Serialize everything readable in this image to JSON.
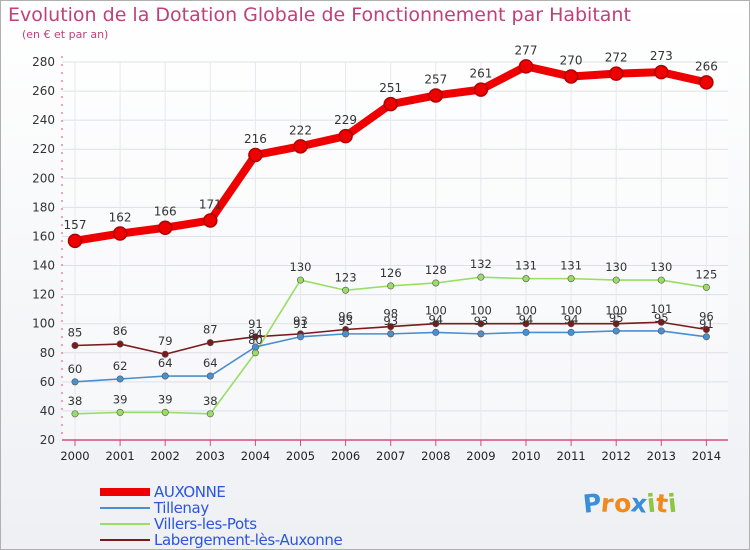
{
  "chart_data": {
    "type": "line",
    "title": "Evolution de la Dotation Globale de Fonctionnement par Habitant",
    "subtitle": "(en € et par an)",
    "xlabel": "",
    "ylabel": "",
    "categories": [
      "2000",
      "2001",
      "2002",
      "2003",
      "2004",
      "2005",
      "2006",
      "2007",
      "2008",
      "2009",
      "2010",
      "2011",
      "2012",
      "2013",
      "2014"
    ],
    "ylim": [
      20,
      280
    ],
    "yticks": [
      20,
      40,
      60,
      80,
      100,
      120,
      140,
      160,
      180,
      200,
      220,
      240,
      260,
      280
    ],
    "grid": true,
    "legend_position": "bottom-left",
    "series": [
      {
        "name": "Labergement-lès-Auxonne",
        "color": "#7a1a1a",
        "values": [
          85,
          86,
          79,
          87,
          91,
          93,
          96,
          98,
          100,
          100,
          100,
          100,
          100,
          101,
          96
        ]
      },
      {
        "name": "Villers-les-Pots",
        "color": "#99dd66",
        "values": [
          38,
          39,
          39,
          38,
          80,
          130,
          123,
          126,
          128,
          132,
          131,
          131,
          130,
          130,
          125
        ]
      },
      {
        "name": "Tillenay",
        "color": "#4a8fd0",
        "values": [
          60,
          62,
          64,
          64,
          84,
          91,
          93,
          93,
          94,
          93,
          94,
          94,
          95,
          95,
          91
        ]
      },
      {
        "name": "AUXONNE",
        "color": "#ee0000",
        "values": [
          157,
          162,
          166,
          171,
          216,
          222,
          229,
          251,
          257,
          261,
          277,
          270,
          272,
          273,
          266
        ]
      }
    ],
    "legend_order": [
      "AUXONNE",
      "Tillenay",
      "Villers-les-Pots",
      "Labergement-lès-Auxonne"
    ]
  },
  "brand": {
    "letters": [
      "P",
      "r",
      "o",
      "x",
      "i",
      "t",
      "i"
    ],
    "colors": [
      "#3a8fd8",
      "#f08a1c",
      "#f08a1c",
      "#3a8fd8",
      "#8ec63f",
      "#f08a1c",
      "#8ec63f"
    ]
  }
}
